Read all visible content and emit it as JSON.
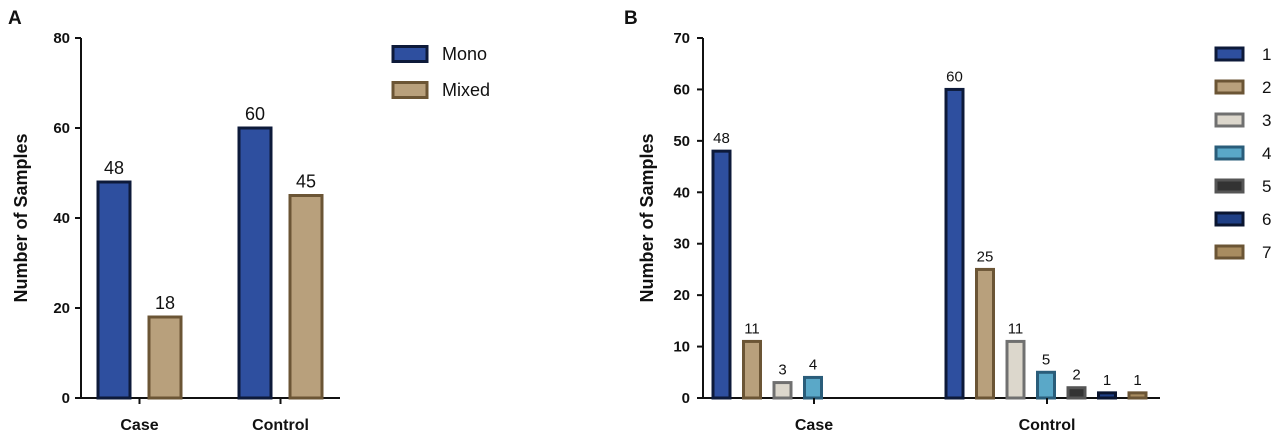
{
  "chart_data": [
    {
      "panel": "A",
      "type": "bar",
      "ylabel": "Number of Samples",
      "ylim": [
        0,
        80
      ],
      "yticks": [
        0,
        20,
        40,
        60,
        80
      ],
      "categories": [
        "Case",
        "Control"
      ],
      "series": [
        {
          "name": "Mono",
          "values": [
            48,
            60
          ],
          "color": "#2e4f9f",
          "stroke": "#0d1a3a"
        },
        {
          "name": "Mixed",
          "values": [
            18,
            45
          ],
          "color": "#b8a07c",
          "stroke": "#6b5535"
        }
      ],
      "legend": "right",
      "grid": false
    },
    {
      "panel": "B",
      "type": "bar",
      "ylabel": "Number of Samples",
      "ylim": [
        0,
        70
      ],
      "yticks": [
        0,
        10,
        20,
        30,
        40,
        50,
        60,
        70
      ],
      "categories": [
        "Case",
        "Control"
      ],
      "series": [
        {
          "name": "1",
          "values": [
            48,
            60
          ],
          "color": "#2e4f9f",
          "stroke": "#0d1a3a"
        },
        {
          "name": "2",
          "values": [
            11,
            25
          ],
          "color": "#b8a07c",
          "stroke": "#6b5535"
        },
        {
          "name": "3",
          "values": [
            3,
            11
          ],
          "color": "#dcd7cc",
          "stroke": "#707070"
        },
        {
          "name": "4",
          "values": [
            4,
            5
          ],
          "color": "#5aa8c8",
          "stroke": "#2a5d7a"
        },
        {
          "name": "5",
          "values": [
            null,
            2
          ],
          "color": "#333333",
          "stroke": "#555555"
        },
        {
          "name": "6",
          "values": [
            null,
            1
          ],
          "color": "#1f3f85",
          "stroke": "#0a1530"
        },
        {
          "name": "7",
          "values": [
            null,
            1
          ],
          "color": "#a88c60",
          "stroke": "#6b5535"
        }
      ],
      "legend": "right",
      "grid": false
    }
  ]
}
